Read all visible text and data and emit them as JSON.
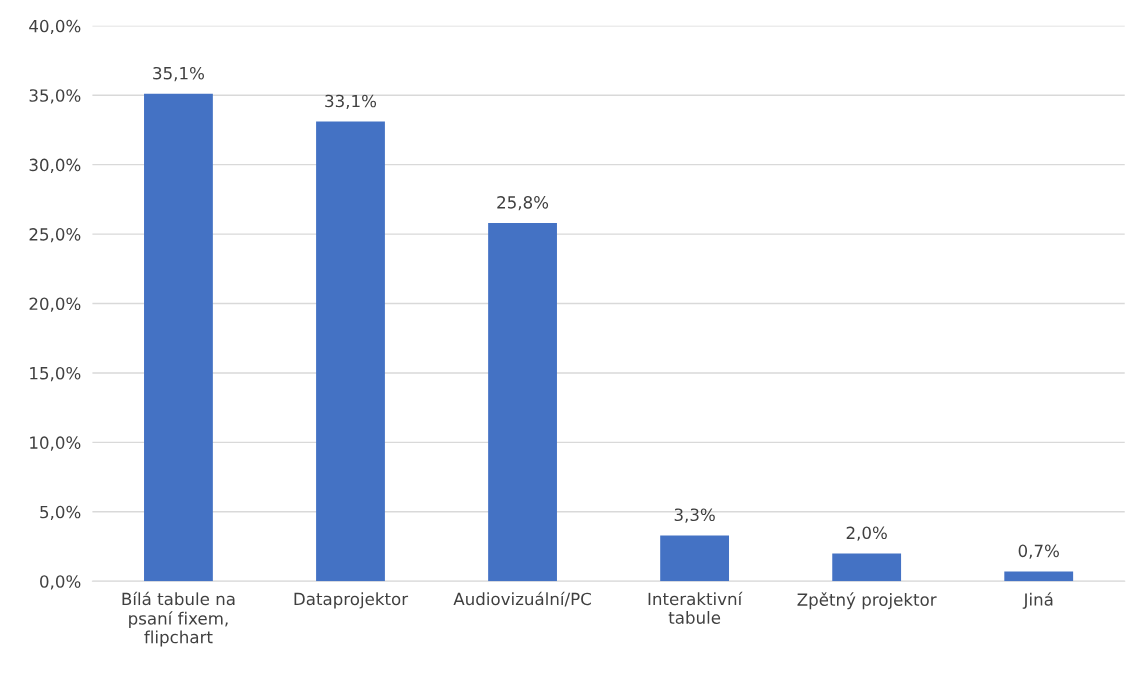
{
  "chart_data": {
    "type": "bar",
    "categories": [
      "Bílá tabule na psaní fixem, flipchart",
      "Dataprojektor",
      "Audiovizuální/PC",
      "Interaktivní tabule",
      "Zpětný projektor",
      "Jiná"
    ],
    "values": [
      35.1,
      33.1,
      25.8,
      3.3,
      2.0,
      0.7
    ],
    "value_labels": [
      "35,1%",
      "33,1%",
      "25,8%",
      "3,3%",
      "2,0%",
      "0,7%"
    ],
    "color": "#4472c4",
    "ylim": [
      0,
      40
    ],
    "yticks": [
      {
        "value": 0,
        "label": "0,0%"
      },
      {
        "value": 5,
        "label": "5,0%"
      },
      {
        "value": 10,
        "label": "10,0%"
      },
      {
        "value": 15,
        "label": "15,0%"
      },
      {
        "value": 20,
        "label": "20,0%"
      },
      {
        "value": 25,
        "label": "25,0%"
      },
      {
        "value": 30,
        "label": "30,0%"
      },
      {
        "value": 35,
        "label": "35,0%"
      },
      {
        "value": 40,
        "label": "40,0%"
      }
    ],
    "grid": "y",
    "legend": false
  }
}
